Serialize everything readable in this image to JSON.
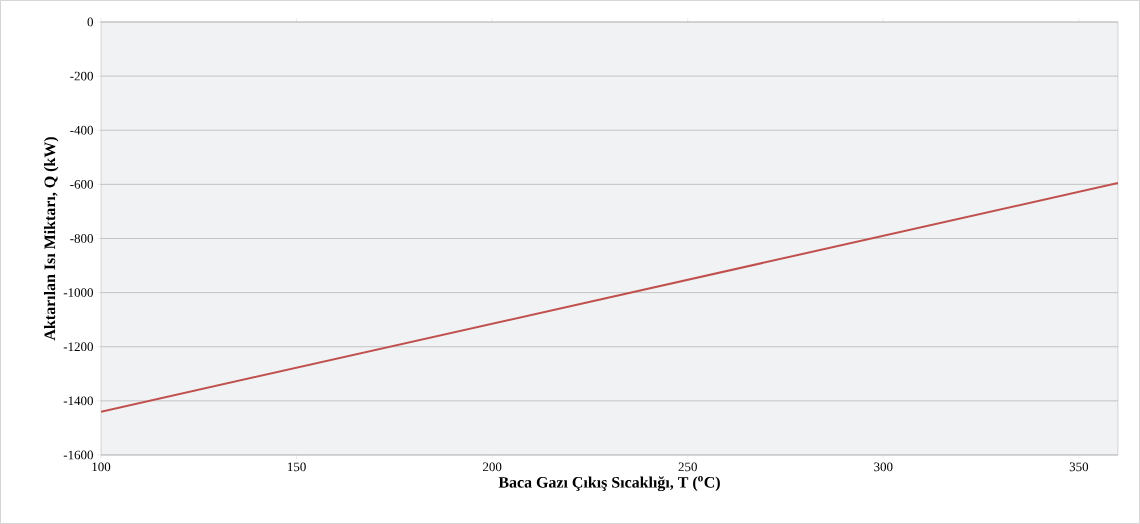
{
  "chart_data": {
    "type": "line",
    "xlabel": "Baca Gazı Çıkış Sıcaklığı, T ($^{o}$C)",
    "ylabel": "Aktarılan Isı Miktarı, Q (kW)",
    "x": [
      100,
      360
    ],
    "series": [
      {
        "color": "#c0504d",
        "values": [
          -1440,
          -595
        ]
      }
    ],
    "xlim": [
      100,
      360
    ],
    "xticks": [
      100,
      150,
      200,
      250,
      300,
      350
    ],
    "ylim": [
      -1600,
      0
    ],
    "yticks": [
      -1600,
      -1400,
      -1200,
      -1000,
      -800,
      -600,
      -400,
      -200,
      0
    ],
    "grid": "y",
    "marker": "none",
    "line_style": "solid"
  }
}
